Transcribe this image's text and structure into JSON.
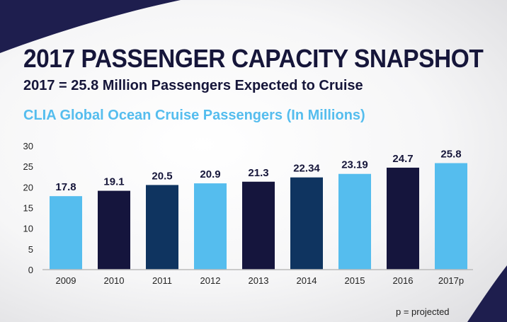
{
  "header": {
    "title": "2017 PASSENGER CAPACITY SNAPSHOT",
    "subtitle": "2017 = 25.8 Million Passengers Expected to Cruise"
  },
  "footnote": "p = projected",
  "colors": {
    "navy": "#16163a",
    "light_blue": "#55bdee",
    "dark_bar": "#15153d",
    "mid_bar": "#0f3460"
  },
  "chart_data": {
    "type": "bar",
    "title": "CLIA Global Ocean Cruise Passengers (In Millions)",
    "xlabel": "",
    "ylabel": "",
    "categories": [
      "2009",
      "2010",
      "2011",
      "2012",
      "2013",
      "2014",
      "2015",
      "2016",
      "2017p"
    ],
    "values": [
      17.8,
      19.1,
      20.5,
      20.9,
      21.3,
      22.34,
      23.19,
      24.7,
      25.8
    ],
    "data_labels": [
      "17.8",
      "19.1",
      "20.5",
      "20.9",
      "21.3",
      "22.34",
      "23.19",
      "24.7",
      "25.8"
    ],
    "bar_colors": [
      "#55bdee",
      "#15153d",
      "#0f3460",
      "#55bdee",
      "#15153d",
      "#0f3460",
      "#55bdee",
      "#15153d",
      "#55bdee"
    ],
    "ylim": [
      0,
      30
    ],
    "yticks": [
      "0",
      "5",
      "10",
      "15",
      "20",
      "25",
      "30"
    ],
    "grid": false,
    "legend": "none"
  }
}
